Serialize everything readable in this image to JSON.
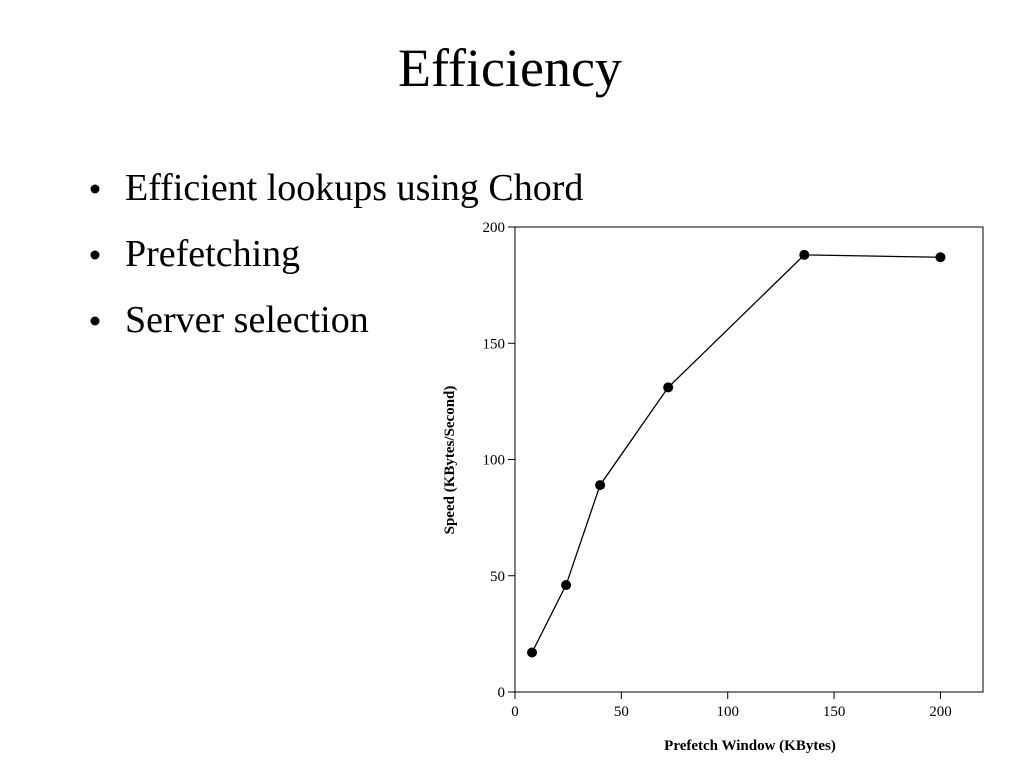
{
  "title": "Efficiency",
  "bullets": [
    "Efficient lookups using Chord",
    "Prefetching",
    "Server selection"
  ],
  "chart_data": {
    "type": "line",
    "xlabel": "Prefetch Window (KBytes)",
    "ylabel": "Speed (KBytes/Second)",
    "x": [
      8,
      24,
      40,
      72,
      136,
      200
    ],
    "series": [
      {
        "color": "#000000",
        "values": [
          17,
          46,
          89,
          131,
          188,
          187
        ]
      }
    ],
    "xlim": [
      0,
      220
    ],
    "xticks": [
      0,
      50,
      100,
      150,
      200
    ],
    "ylim": [
      0,
      200
    ],
    "yticks": [
      0,
      50,
      100,
      150,
      200
    ]
  }
}
